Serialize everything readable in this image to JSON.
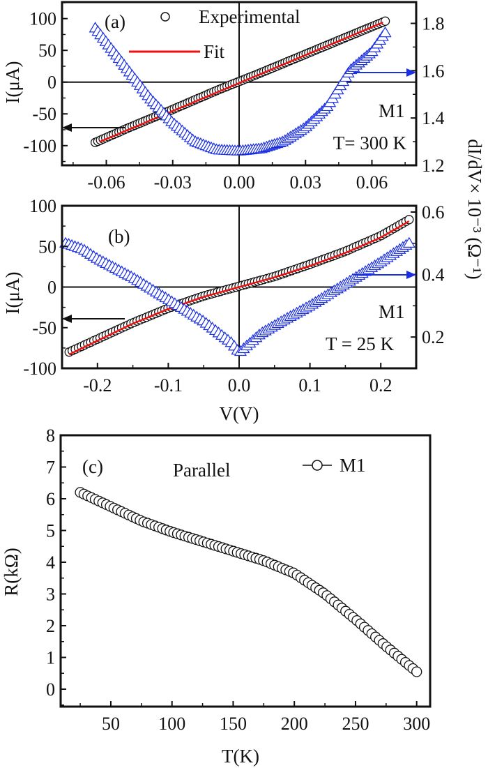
{
  "colors": {
    "experimental": "#111111",
    "fit": "#ee1111",
    "didv": "#1a2fe0",
    "axis": "#111111"
  },
  "chart_data": [
    {
      "id": "a",
      "type": "scatter",
      "panel_label": "(a)",
      "sample": "M1",
      "temperature": "T= 300 K",
      "xlabel": "",
      "ylabel": "I(μA)",
      "ylabel_right": "dI/dV× 10⁻³ (Ω⁻¹)",
      "xlim": [
        -0.08,
        0.08
      ],
      "ylim": [
        -131,
        126
      ],
      "ylim_right": [
        1.2,
        1.89
      ],
      "xticks": [
        "-0.06",
        "-0.03",
        "0.00",
        "0.03",
        "0.06"
      ],
      "yticks": [
        "100",
        "50",
        "0",
        "-50",
        "-100"
      ],
      "yticks_right": [
        "1.8",
        "1.6",
        "1.4",
        "1.2"
      ],
      "legend": {
        "experimental": "Experimental",
        "fit": "Fit",
        "placement": "top-center"
      },
      "series": [
        {
          "name": "Experimental",
          "axis": "left",
          "marker": "circle",
          "x": [
            -0.065,
            -0.05,
            -0.03,
            -0.01,
            0,
            0.01,
            0.03,
            0.05,
            0.066
          ],
          "y": [
            -95,
            -72,
            -43,
            -13,
            1,
            15,
            44,
            73,
            96
          ]
        },
        {
          "name": "Fit",
          "axis": "left",
          "marker": "line",
          "x": [
            -0.063,
            0.065
          ],
          "y": [
            -94,
            94
          ]
        },
        {
          "name": "dI/dV",
          "axis": "right",
          "marker": "triangle",
          "x": [
            -0.065,
            -0.05,
            -0.04,
            -0.03,
            -0.02,
            -0.01,
            0,
            0.01,
            0.02,
            0.03,
            0.04,
            0.05,
            0.06,
            0.066
          ],
          "y": [
            1.78,
            1.6,
            1.48,
            1.38,
            1.3,
            1.265,
            1.26,
            1.27,
            1.3,
            1.36,
            1.45,
            1.6,
            1.68,
            1.76
          ]
        }
      ]
    },
    {
      "id": "b",
      "type": "scatter",
      "panel_label": "(b)",
      "sample": "M1",
      "temperature": "T = 25 K",
      "xlabel": "V(V)",
      "ylabel": "I(μA)",
      "xlim": [
        -0.25,
        0.25
      ],
      "ylim": [
        -100,
        100
      ],
      "ylim_right": [
        0.1,
        0.62
      ],
      "xticks": [
        "-0.2",
        "-0.1",
        "0.0",
        "0.1",
        "0.2"
      ],
      "yticks": [
        "100",
        "50",
        "0",
        "-50",
        "-100"
      ],
      "yticks_right": [
        "0.6",
        "0.4",
        "0.2"
      ],
      "series": [
        {
          "name": "Experimental",
          "axis": "left",
          "marker": "circle",
          "x": [
            -0.24,
            -0.2,
            -0.15,
            -0.1,
            -0.05,
            0,
            0.05,
            0.1,
            0.15,
            0.2,
            0.24
          ],
          "y": [
            -80,
            -64,
            -44,
            -26,
            -11,
            1,
            13,
            28,
            44,
            63,
            83
          ]
        },
        {
          "name": "Fit",
          "axis": "left",
          "marker": "line",
          "x": [
            -0.24,
            -0.2,
            -0.15,
            -0.1,
            -0.05,
            0,
            0.05,
            0.1,
            0.15,
            0.2,
            0.24
          ],
          "y": [
            -83,
            -66,
            -45,
            -27,
            -12,
            0,
            12,
            26,
            42,
            61,
            81
          ]
        },
        {
          "name": "dI/dV",
          "axis": "right",
          "marker": "triangle",
          "x": [
            -0.245,
            -0.22,
            -0.2,
            -0.15,
            -0.1,
            -0.05,
            -0.01,
            0,
            0.01,
            0.03,
            0.06,
            0.1,
            0.15,
            0.2,
            0.24
          ],
          "y": [
            0.5,
            0.48,
            0.45,
            0.39,
            0.32,
            0.25,
            0.18,
            0.15,
            0.17,
            0.21,
            0.25,
            0.3,
            0.37,
            0.44,
            0.5
          ]
        }
      ]
    },
    {
      "id": "c",
      "type": "scatter",
      "panel_label": "(c)",
      "annotation": "Parallel",
      "xlabel": "T(K)",
      "ylabel": "R(kΩ)",
      "xlim": [
        9,
        311
      ],
      "ylim": [
        -0.55,
        8
      ],
      "xticks": [
        "50",
        "100",
        "150",
        "200",
        "250",
        "300"
      ],
      "yticks": [
        "8",
        "7",
        "6",
        "5",
        "4",
        "3",
        "2",
        "1",
        "0"
      ],
      "legend": {
        "label": "M1",
        "placement": "top-right"
      },
      "series": [
        {
          "name": "M1",
          "marker": "circle",
          "x": [
            25,
            50,
            75,
            100,
            125,
            150,
            175,
            200,
            225,
            250,
            275,
            300
          ],
          "y": [
            6.2,
            5.75,
            5.3,
            4.95,
            4.65,
            4.35,
            4.05,
            3.65,
            3.0,
            2.2,
            1.35,
            0.55
          ]
        }
      ]
    }
  ]
}
